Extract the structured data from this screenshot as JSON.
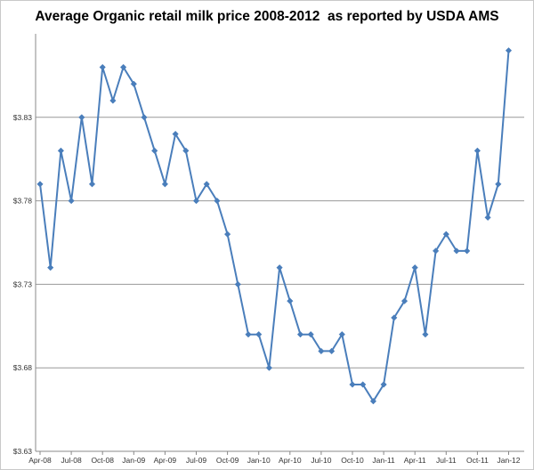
{
  "chart_data": {
    "type": "line",
    "title": "Average Organic retail milk price 2008-2012  as reported by USDA AMS",
    "xlabel": "",
    "ylabel": "",
    "y_ticks": [
      "$3.63",
      "$3.68",
      "$3.73",
      "$3.78",
      "$3.83"
    ],
    "ylim": [
      3.63,
      3.88
    ],
    "x_ticks": [
      "Apr-08",
      "Jul-08",
      "Oct-08",
      "Jan-09",
      "Apr-09",
      "Jul-09",
      "Oct-09",
      "Jan-10",
      "Apr-10",
      "Jul-10",
      "Oct-10",
      "Jan-11",
      "Apr-11",
      "Jul-11",
      "Oct-11",
      "Jan-12"
    ],
    "grid": "horizontal",
    "legend": "none",
    "series": [
      {
        "color": "#4a7ebb",
        "values": [
          3.79,
          3.74,
          3.81,
          3.78,
          3.83,
          3.79,
          3.86,
          3.84,
          3.86,
          3.85,
          3.83,
          3.81,
          3.79,
          3.82,
          3.81,
          3.78,
          3.79,
          3.78,
          3.76,
          3.73,
          3.7,
          3.7,
          3.68,
          3.74,
          3.72,
          3.7,
          3.7,
          3.69,
          3.69,
          3.7,
          3.67,
          3.67,
          3.66,
          3.67,
          3.71,
          3.72,
          3.74,
          3.7,
          3.75,
          3.76,
          3.75,
          3.75,
          3.81,
          3.77,
          3.79,
          3.87
        ]
      }
    ]
  }
}
